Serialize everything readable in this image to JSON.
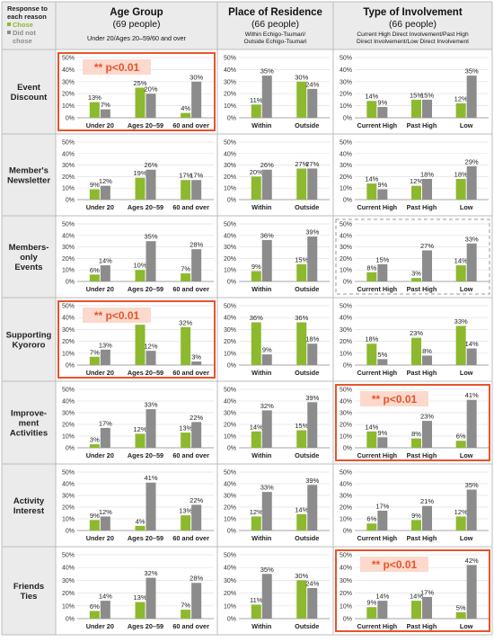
{
  "legend": {
    "title": "Response to each reason",
    "chose": "Chose",
    "not_chose": "Did not chose"
  },
  "colors": {
    "chose": "#8db92e",
    "not_chose": "#8c8c8c",
    "sig_border": "#e8542a",
    "sig_fill": "#fbd9cc",
    "sig_text": "#e8542a",
    "header_bg": "#ebebeb"
  },
  "columns": [
    {
      "title": "Age Group",
      "count": "(69 people)",
      "subtitle": "Under 20/Ages 20–59/60 and over",
      "subtitle2": ""
    },
    {
      "title": "Place of Residence",
      "count": "(66 people)",
      "subtitle": "Within Echigo-Tsumari/",
      "subtitle2": "Outside Echigo-Tsumari"
    },
    {
      "title": "Type of Involvement",
      "count": "(66 people)",
      "subtitle": "Current High Direct Involvement/Past High",
      "subtitle2": "Direct Involvement/Low Direct Involvement"
    }
  ],
  "rows": [
    {
      "label": [
        "Event",
        "Discount"
      ]
    },
    {
      "label": [
        "Member's",
        "Newsletter"
      ]
    },
    {
      "label": [
        "Members-",
        "only",
        "Events"
      ]
    },
    {
      "label": [
        "Supporting",
        "Kyororo"
      ]
    },
    {
      "label": [
        "Improve-",
        "ment",
        "Activities"
      ]
    },
    {
      "label": [
        "Activity",
        "Interest"
      ]
    },
    {
      "label": [
        "Friends",
        "Ties"
      ]
    }
  ],
  "significance_label": "** p<0.01",
  "chart_data": {
    "type": "bar",
    "y_ticks": [
      "0%",
      "10%",
      "20%",
      "30%",
      "40%",
      "50%"
    ],
    "ylim": [
      0,
      50
    ],
    "series_names": [
      "Chose",
      "Did not chose"
    ],
    "categories": [
      [
        "Under 20",
        "Ages 20–59",
        "60 and over"
      ],
      [
        "Within",
        "Outside"
      ],
      [
        "Current High",
        "Past High",
        "Low"
      ]
    ],
    "panels": [
      [
        {
          "values": [
            [
              13,
              7
            ],
            [
              25,
              20
            ],
            [
              4,
              30
            ]
          ],
          "significant": true
        },
        {
          "values": [
            [
              11,
              35
            ],
            [
              30,
              24
            ]
          ],
          "significant": false
        },
        {
          "values": [
            [
              14,
              9
            ],
            [
              15,
              15
            ],
            [
              12,
              35
            ]
          ],
          "significant": false
        }
      ],
      [
        {
          "values": [
            [
              9,
              12
            ],
            [
              19,
              26
            ],
            [
              17,
              17
            ]
          ],
          "significant": false
        },
        {
          "values": [
            [
              20,
              26
            ],
            [
              27,
              27
            ]
          ],
          "significant": false
        },
        {
          "values": [
            [
              14,
              9
            ],
            [
              12,
              18
            ],
            [
              18,
              29
            ]
          ],
          "significant": false
        }
      ],
      [
        {
          "values": [
            [
              6,
              14
            ],
            [
              10,
              35
            ],
            [
              7,
              28
            ]
          ],
          "significant": false
        },
        {
          "values": [
            [
              9,
              36
            ],
            [
              15,
              39
            ]
          ],
          "significant": false
        },
        {
          "values": [
            [
              8,
              15
            ],
            [
              3,
              27
            ],
            [
              14,
              33
            ]
          ],
          "significant": false,
          "dashed": true
        }
      ],
      [
        {
          "values": [
            [
              7,
              13
            ],
            [
              34,
              12
            ],
            [
              32,
              3
            ]
          ],
          "significant": true
        },
        {
          "values": [
            [
              36,
              9
            ],
            [
              36,
              18
            ]
          ],
          "significant": false
        },
        {
          "values": [
            [
              18,
              5
            ],
            [
              23,
              8
            ],
            [
              33,
              14
            ]
          ],
          "significant": false
        }
      ],
      [
        {
          "values": [
            [
              3,
              17
            ],
            [
              12,
              33
            ],
            [
              13,
              22
            ]
          ],
          "significant": false
        },
        {
          "values": [
            [
              14,
              32
            ],
            [
              15,
              39
            ]
          ],
          "significant": false
        },
        {
          "values": [
            [
              14,
              9
            ],
            [
              8,
              23
            ],
            [
              6,
              41
            ]
          ],
          "significant": true
        }
      ],
      [
        {
          "values": [
            [
              9,
              12
            ],
            [
              4,
              41
            ],
            [
              13,
              22
            ]
          ],
          "significant": false
        },
        {
          "values": [
            [
              12,
              33
            ],
            [
              14,
              39
            ]
          ],
          "significant": false
        },
        {
          "values": [
            [
              6,
              17
            ],
            [
              9,
              21
            ],
            [
              12,
              35
            ]
          ],
          "significant": false
        }
      ],
      [
        {
          "values": [
            [
              6,
              14
            ],
            [
              13,
              32
            ],
            [
              7,
              28
            ]
          ],
          "significant": false
        },
        {
          "values": [
            [
              11,
              35
            ],
            [
              30,
              24
            ]
          ],
          "significant": false
        },
        {
          "values": [
            [
              9,
              14
            ],
            [
              14,
              17
            ],
            [
              5,
              42
            ]
          ],
          "significant": true
        }
      ]
    ]
  }
}
